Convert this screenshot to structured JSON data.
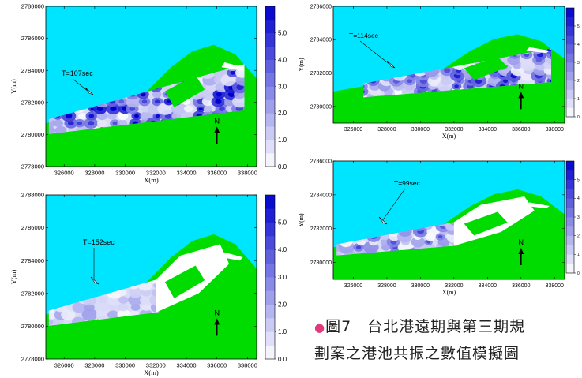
{
  "colors": {
    "sea": "#00e5ff",
    "land": "#00dc00",
    "basin_low": "#ffffff",
    "basin_high": "#0000cc",
    "structure": "#ffffff",
    "frame": "#000000"
  },
  "caption": {
    "bullet": "●",
    "text_line1": "圖7　台北港遠期與第三期規",
    "text_line2": "劃案之港池共振之數值模擬圖"
  },
  "chart_data": [
    {
      "type": "heatmap",
      "annotation": "T=107sec",
      "xlabel": "X(m)",
      "ylabel": "Y(m)",
      "xticks": [
        "326000",
        "328000",
        "330000",
        "332000",
        "334000",
        "336000",
        "338000"
      ],
      "yticks": [
        "2778000",
        "2780000",
        "2782000",
        "2784000",
        "2786000",
        "2788000"
      ],
      "xlim": [
        324800,
        338600
      ],
      "ylim": [
        2778000,
        2788000
      ],
      "colorbar_ticks": [
        "0.0",
        "1.0",
        "2.0",
        "3.0",
        "4.0",
        "5.0"
      ],
      "colorbar_range": [
        0,
        6
      ],
      "north_label": "N",
      "intensity": 0.85,
      "basin_start": 325000,
      "expansion": "open"
    },
    {
      "type": "heatmap",
      "annotation": "T=114sec",
      "xlabel": "X(m)",
      "ylabel": "Y(m)",
      "xticks": [
        "326000",
        "328000",
        "330000",
        "332000",
        "334000",
        "336000",
        "338000"
      ],
      "yticks": [
        "2780000",
        "2782000",
        "2784000",
        "2786000"
      ],
      "xlim": [
        324800,
        338600
      ],
      "ylim": [
        2779000,
        2786000
      ],
      "colorbar_ticks": [
        "0",
        "1",
        "2",
        "3",
        "4",
        "5"
      ],
      "colorbar_range": [
        0,
        6
      ],
      "north_label": "N",
      "intensity": 0.65,
      "basin_start": 326600,
      "expansion": "open"
    },
    {
      "type": "heatmap",
      "annotation": "T=152sec",
      "xlabel": "X(m)",
      "ylabel": "Y(m)",
      "xticks": [
        "326000",
        "328000",
        "330000",
        "332000",
        "334000",
        "336000",
        "338000"
      ],
      "yticks": [
        "2778000",
        "2780000",
        "2782000",
        "2784000",
        "2786000",
        "2788000"
      ],
      "xlim": [
        324800,
        338600
      ],
      "ylim": [
        2778000,
        2788000
      ],
      "colorbar_ticks": [
        "0.0",
        "1.0",
        "2.0",
        "3.0",
        "4.0",
        "5.0"
      ],
      "colorbar_range": [
        0,
        6
      ],
      "north_label": "N",
      "intensity": 0.35,
      "basin_start": 325000,
      "expansion": "filled"
    },
    {
      "type": "heatmap",
      "annotation": "T=99sec",
      "xlabel": "X(m)",
      "ylabel": "Y(m)",
      "xticks": [
        "326000",
        "328000",
        "330000",
        "332000",
        "334000",
        "336000",
        "338000"
      ],
      "yticks": [
        "2780000",
        "2782000",
        "2784000",
        "2786000"
      ],
      "xlim": [
        324800,
        338600
      ],
      "ylim": [
        2779000,
        2786000
      ],
      "colorbar_ticks": [
        "0",
        "1",
        "2",
        "3",
        "4",
        "5"
      ],
      "colorbar_range": [
        0,
        6
      ],
      "north_label": "N",
      "intensity": 0.5,
      "basin_start": 325000,
      "expansion": "filled"
    }
  ]
}
